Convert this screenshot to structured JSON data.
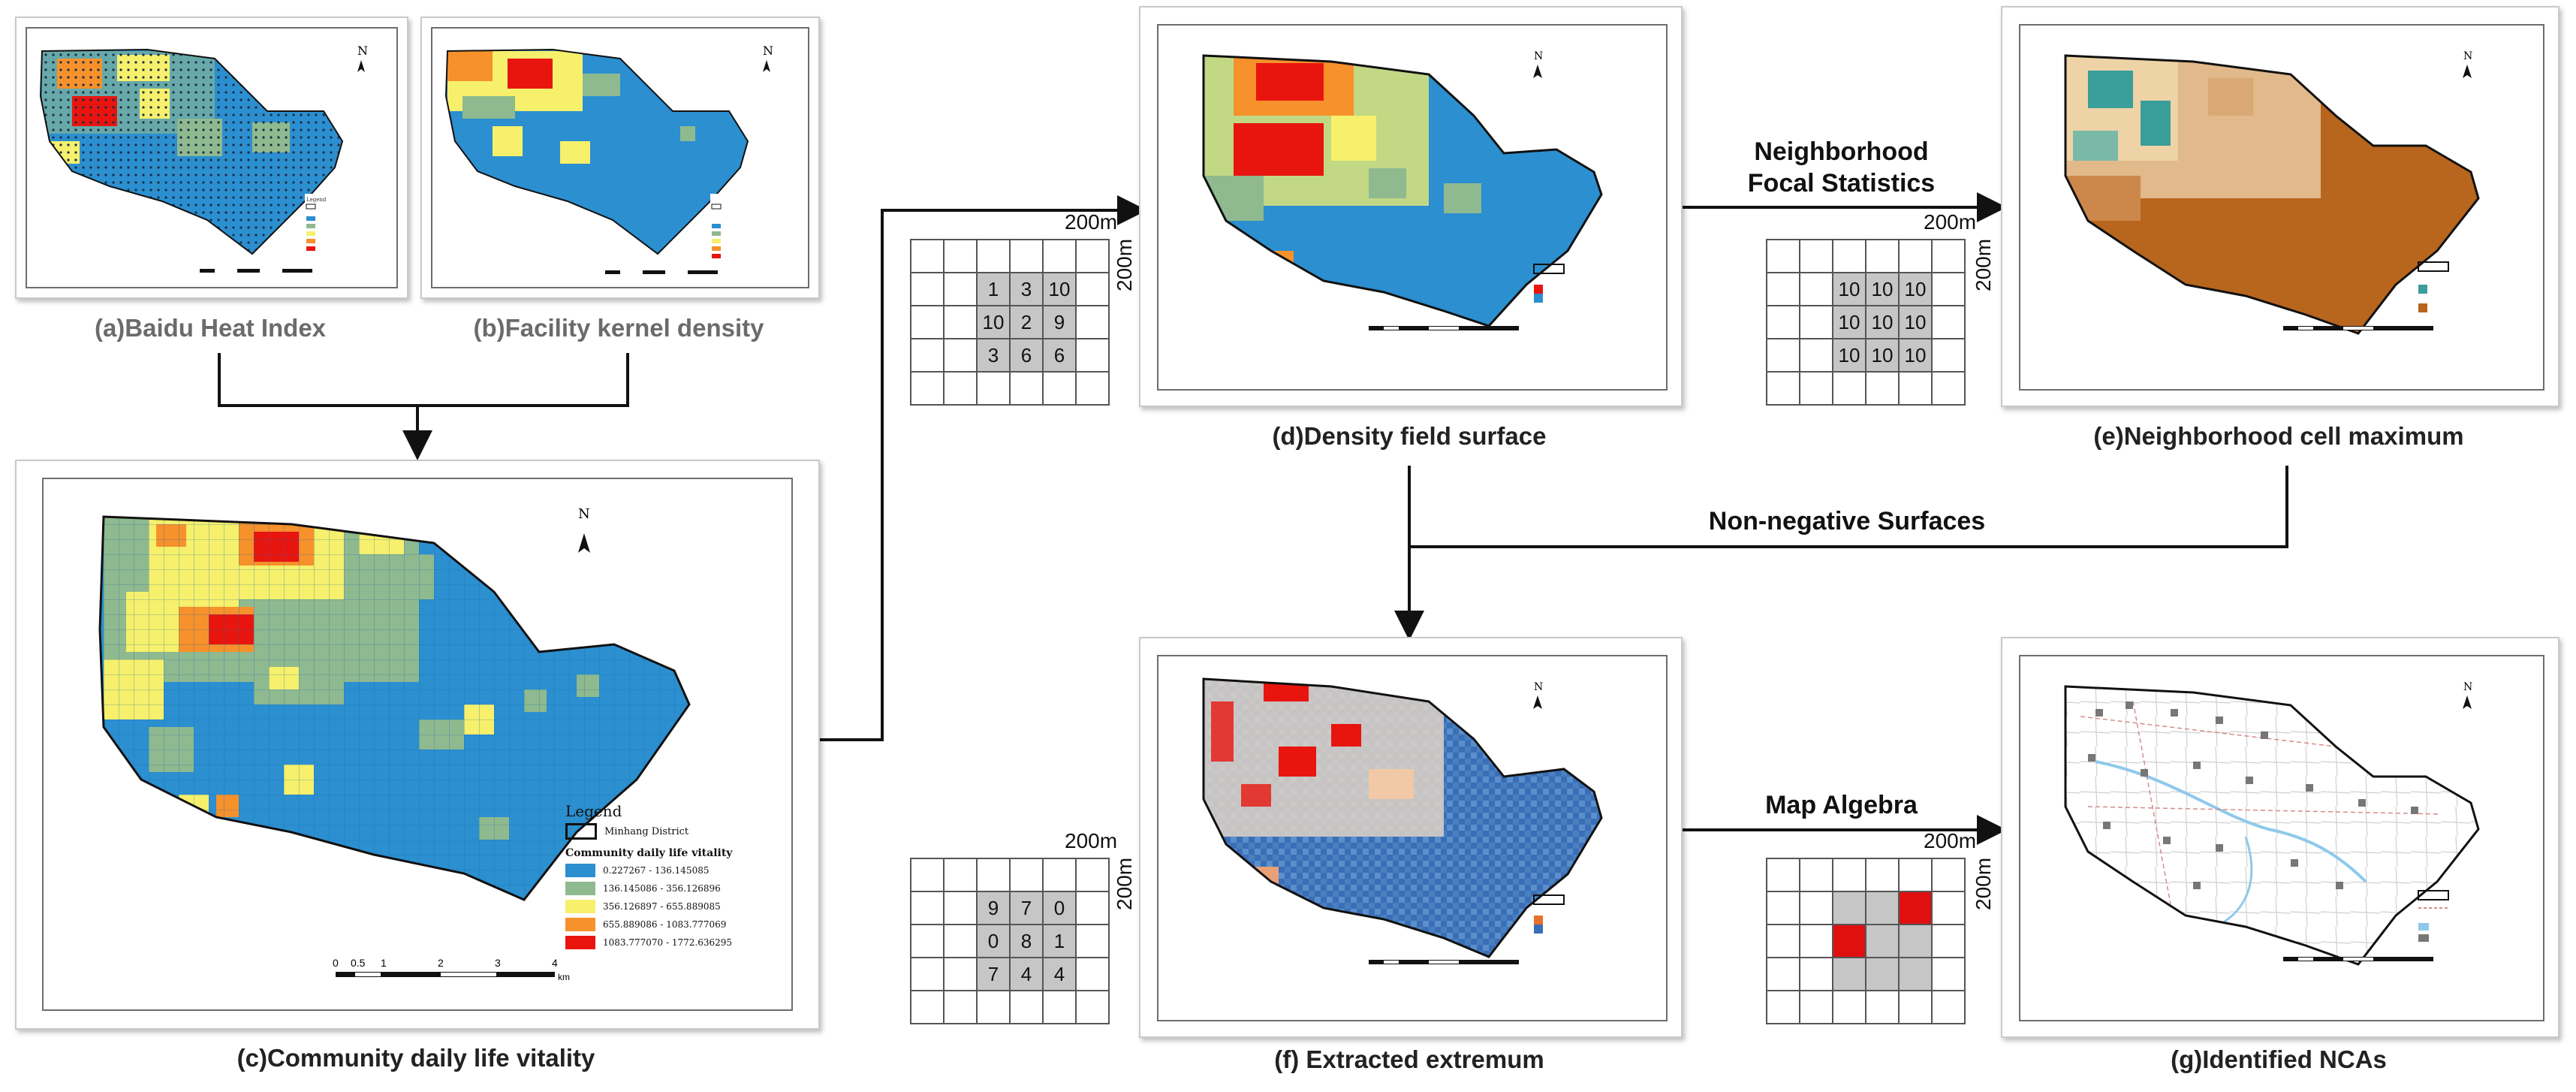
{
  "captions": {
    "a": "(a)Baidu Heat Index",
    "b": "(b)Facility kernel density",
    "c": "(c)Community daily life vitality",
    "d": "(d)Density field surface",
    "e": "(e)Neighborhood cell maximum",
    "f": "(f) Extracted extremum",
    "g": "(g)Identified NCAs"
  },
  "operations": {
    "focal_line1": "Neighborhood",
    "focal_line2": "Focal Statistics",
    "non_negative": "Non-negative Surfaces",
    "map_algebra": "Map Algebra"
  },
  "grid_scale": {
    "horizontal": "200m",
    "vertical": "200m"
  },
  "grids": {
    "d": [
      [
        "",
        "",
        "",
        "",
        "",
        ""
      ],
      [
        "",
        "",
        "1",
        "3",
        "10",
        ""
      ],
      [
        "",
        "",
        "10",
        "2",
        "9",
        ""
      ],
      [
        "",
        "",
        "3",
        "6",
        "6",
        ""
      ],
      [
        "",
        "",
        "",
        "",
        "",
        ""
      ]
    ],
    "e": [
      [
        "",
        "",
        "",
        "",
        "",
        ""
      ],
      [
        "",
        "",
        "10",
        "10",
        "10",
        ""
      ],
      [
        "",
        "",
        "10",
        "10",
        "10",
        ""
      ],
      [
        "",
        "",
        "10",
        "10",
        "10",
        ""
      ],
      [
        "",
        "",
        "",
        "",
        "",
        ""
      ]
    ],
    "f": [
      [
        "",
        "",
        "",
        "",
        "",
        ""
      ],
      [
        "",
        "",
        "9",
        "7",
        "0",
        ""
      ],
      [
        "",
        "",
        "0",
        "8",
        "1",
        ""
      ],
      [
        "",
        "",
        "7",
        "4",
        "4",
        ""
      ],
      [
        "",
        "",
        "",
        "",
        "",
        ""
      ]
    ],
    "g": [
      [
        "",
        "",
        "",
        "",
        "",
        ""
      ],
      [
        "",
        "",
        "",
        "",
        "",
        ""
      ],
      [
        "",
        "",
        "",
        "",
        "",
        ""
      ],
      [
        "",
        "",
        "",
        "",
        "",
        ""
      ],
      [
        "",
        "",
        "",
        "",
        "",
        ""
      ]
    ]
  },
  "map_c": {
    "legend_title": "Legend",
    "district": "Minhang District",
    "layer_title": "Community daily life vitality",
    "classes": [
      {
        "label": "0.227267 - 136.145085",
        "color": "#2b8fd0"
      },
      {
        "label": "136.145086 - 356.126896",
        "color": "#8fb98f"
      },
      {
        "label": "356.126897 - 655.889085",
        "color": "#f6f06c"
      },
      {
        "label": "655.889086 - 1083.777069",
        "color": "#f6912c"
      },
      {
        "label": "1083.777070 - 1772.636295",
        "color": "#e8150f"
      }
    ],
    "scale": [
      "0",
      "0.5",
      "1",
      "2",
      "3",
      "4"
    ],
    "scale_unit": "km",
    "north": "N"
  },
  "colors": {
    "blue": "#2b8fd0",
    "green": "#8fb98f",
    "yellow": "#f6f06c",
    "orange": "#f6912c",
    "red": "#e8150f",
    "brown": "#b8651e",
    "tan": "#e1b98a",
    "teal": "#3a9e9a"
  },
  "icons": {
    "arrow": "arrow-head-icon",
    "north": "north-arrow-icon"
  }
}
